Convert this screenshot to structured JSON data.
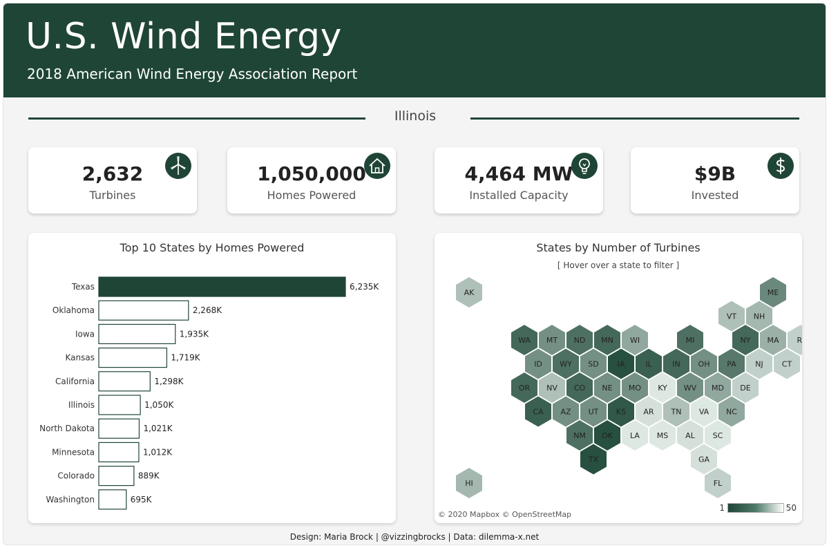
{
  "header": {
    "title": "U.S. Wind Energy",
    "subtitle": "2018 American Wind Energy Association Report"
  },
  "selected_state": "Illinois",
  "kpis": [
    {
      "value": "2,632",
      "label": "Turbines",
      "icon": "wind-turbine-icon"
    },
    {
      "value": "1,050,000",
      "label": "Homes Powered",
      "icon": "house-icon"
    },
    {
      "value": "4,464 MW",
      "label": "Installed Capacity",
      "icon": "lightbulb-icon"
    },
    {
      "value": "$9B",
      "label": "Invested",
      "icon": "dollar-icon"
    }
  ],
  "bar_panel": {
    "title": "Top 10 States by Homes Powered"
  },
  "map_panel": {
    "title": "States by Number of Turbines",
    "hint": "[  Hover over a state to filter  ]",
    "attribution": "© 2020 Mapbox © OpenStreetMap",
    "legend": {
      "min": "1",
      "max": "50"
    }
  },
  "footer": "Design: Maria Brock  |  @vizzingbrocks  |  Data: dilemma-x.net",
  "colors": {
    "brand": "#1f4536",
    "bar_highlight": "#1f4536",
    "bar_outline": "#1f4536"
  },
  "chart_data": [
    {
      "type": "bar",
      "orientation": "horizontal",
      "title": "Top 10 States by Homes Powered",
      "categories": [
        "Texas",
        "Oklahoma",
        "Iowa",
        "Kansas",
        "California",
        "Illinois",
        "North Dakota",
        "Minnesota",
        "Colorado",
        "Washington"
      ],
      "values": [
        6235,
        2268,
        1935,
        1719,
        1298,
        1050,
        1021,
        1012,
        889,
        695
      ],
      "value_labels": [
        "6,235K",
        "2,268K",
        "1,935K",
        "1,719K",
        "1,298K",
        "1,050K",
        "1,021K",
        "1,012K",
        "889K",
        "695K"
      ],
      "unit": "K",
      "highlighted": "Texas"
    },
    {
      "type": "heatmap",
      "title": "States by Number of Turbines",
      "legend_range": [
        1,
        50
      ],
      "cells": [
        {
          "state": "AK",
          "row": 0,
          "col": 1,
          "level": 0.3
        },
        {
          "state": "ME",
          "row": 0,
          "col": 12,
          "level": 0.65
        },
        {
          "state": "VT",
          "row": 1,
          "col": 10.5,
          "level": 0.3
        },
        {
          "state": "NH",
          "row": 1,
          "col": 11.5,
          "level": 0.35
        },
        {
          "state": "WA",
          "row": 2,
          "col": 3,
          "level": 0.85
        },
        {
          "state": "MT",
          "row": 2,
          "col": 4,
          "level": 0.6
        },
        {
          "state": "ND",
          "row": 2,
          "col": 5,
          "level": 0.8
        },
        {
          "state": "MN",
          "row": 2,
          "col": 6,
          "level": 0.85
        },
        {
          "state": "WI",
          "row": 2,
          "col": 7,
          "level": 0.45
        },
        {
          "state": "MI",
          "row": 2,
          "col": 9,
          "level": 0.8
        },
        {
          "state": "NY",
          "row": 2,
          "col": 11,
          "level": 0.85
        },
        {
          "state": "MA",
          "row": 2,
          "col": 12,
          "level": 0.4
        },
        {
          "state": "RI",
          "row": 2,
          "col": 13,
          "level": 0.2
        },
        {
          "state": "ID",
          "row": 3,
          "col": 3.5,
          "level": 0.6
        },
        {
          "state": "WY",
          "row": 3,
          "col": 4.5,
          "level": 0.8
        },
        {
          "state": "SD",
          "row": 3,
          "col": 5.5,
          "level": 0.6
        },
        {
          "state": "IA",
          "row": 3,
          "col": 6.5,
          "level": 1.0
        },
        {
          "state": "IL",
          "row": 3,
          "col": 7.5,
          "level": 0.9
        },
        {
          "state": "IN",
          "row": 3,
          "col": 8.5,
          "level": 0.85
        },
        {
          "state": "OH",
          "row": 3,
          "col": 9.5,
          "level": 0.6
        },
        {
          "state": "PA",
          "row": 3,
          "col": 10.5,
          "level": 0.75
        },
        {
          "state": "NJ",
          "row": 3,
          "col": 11.5,
          "level": 0.2
        },
        {
          "state": "CT",
          "row": 3,
          "col": 12.5,
          "level": 0.2
        },
        {
          "state": "OR",
          "row": 4,
          "col": 3,
          "level": 0.85
        },
        {
          "state": "NV",
          "row": 4,
          "col": 4,
          "level": 0.3
        },
        {
          "state": "CO",
          "row": 4,
          "col": 5,
          "level": 0.85
        },
        {
          "state": "NE",
          "row": 4,
          "col": 6,
          "level": 0.6
        },
        {
          "state": "MO",
          "row": 4,
          "col": 7,
          "level": 0.6
        },
        {
          "state": "KY",
          "row": 4,
          "col": 8,
          "level": 0.05
        },
        {
          "state": "WV",
          "row": 4,
          "col": 9,
          "level": 0.6
        },
        {
          "state": "MD",
          "row": 4,
          "col": 10,
          "level": 0.45
        },
        {
          "state": "DE",
          "row": 4,
          "col": 11,
          "level": 0.2
        },
        {
          "state": "CA",
          "row": 5,
          "col": 3.5,
          "level": 0.9
        },
        {
          "state": "AZ",
          "row": 5,
          "col": 4.5,
          "level": 0.6
        },
        {
          "state": "UT",
          "row": 5,
          "col": 5.5,
          "level": 0.6
        },
        {
          "state": "KS",
          "row": 5,
          "col": 6.5,
          "level": 0.95
        },
        {
          "state": "AR",
          "row": 5,
          "col": 7.5,
          "level": 0.1
        },
        {
          "state": "TN",
          "row": 5,
          "col": 8.5,
          "level": 0.3
        },
        {
          "state": "VA",
          "row": 5,
          "col": 9.5,
          "level": 0.05
        },
        {
          "state": "NC",
          "row": 5,
          "col": 10.5,
          "level": 0.45
        },
        {
          "state": "NM",
          "row": 6,
          "col": 5,
          "level": 0.8
        },
        {
          "state": "OK",
          "row": 6,
          "col": 6,
          "level": 1.0
        },
        {
          "state": "LA",
          "row": 6,
          "col": 7,
          "level": 0.05
        },
        {
          "state": "MS",
          "row": 6,
          "col": 8,
          "level": 0.05
        },
        {
          "state": "AL",
          "row": 6,
          "col": 9,
          "level": 0.1
        },
        {
          "state": "SC",
          "row": 6,
          "col": 10,
          "level": 0.05
        },
        {
          "state": "TX",
          "row": 7,
          "col": 5.5,
          "level": 1.0
        },
        {
          "state": "GA",
          "row": 7,
          "col": 9.5,
          "level": 0.1
        },
        {
          "state": "HI",
          "row": 8,
          "col": 1,
          "level": 0.35
        },
        {
          "state": "FL",
          "row": 8,
          "col": 10,
          "level": 0.2
        }
      ]
    }
  ]
}
